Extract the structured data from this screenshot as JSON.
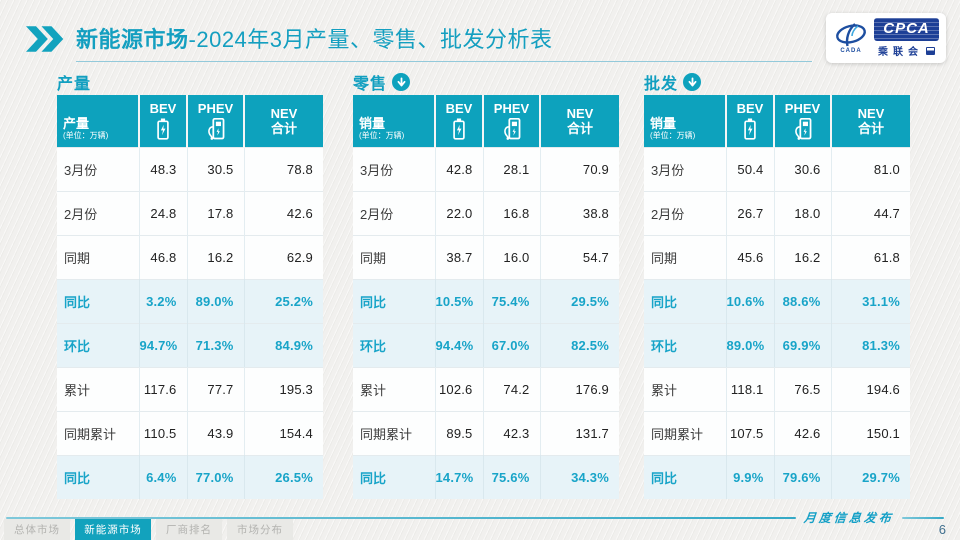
{
  "accent": "#0da2bd",
  "header": {
    "title_strong": "新能源市场",
    "title_rest": "-2024年3月产量、零售、批发分析表",
    "logo": {
      "emblem_text": "CADA",
      "cpca": "CPCA",
      "org": "乘联会"
    }
  },
  "watermark": "CPCA 乘联会",
  "tables": [
    {
      "section_title": "产量",
      "has_arrow": false,
      "corner": {
        "label": "产量",
        "unit": "(单位：万辆)"
      },
      "columns": [
        {
          "label": "BEV",
          "icon": "battery-icon"
        },
        {
          "label": "PHEV",
          "icon": "charger-icon"
        },
        {
          "label": "NEV",
          "label2": "合计"
        }
      ],
      "rows": [
        {
          "label": "3月份",
          "percent": false,
          "values": [
            "48.3",
            "30.5",
            "78.8"
          ]
        },
        {
          "label": "2月份",
          "percent": false,
          "values": [
            "24.8",
            "17.8",
            "42.6"
          ]
        },
        {
          "label": "同期",
          "percent": false,
          "values": [
            "46.8",
            "16.2",
            "62.9"
          ]
        },
        {
          "label": "同比",
          "percent": true,
          "values": [
            "3.2%",
            "89.0%",
            "25.2%"
          ]
        },
        {
          "label": "环比",
          "percent": true,
          "values": [
            "94.7%",
            "71.3%",
            "84.9%"
          ]
        },
        {
          "label": "累计",
          "percent": false,
          "values": [
            "117.6",
            "77.7",
            "195.3"
          ]
        },
        {
          "label": "同期累计",
          "percent": false,
          "values": [
            "110.5",
            "43.9",
            "154.4"
          ]
        },
        {
          "label": "同比",
          "percent": true,
          "values": [
            "6.4%",
            "77.0%",
            "26.5%"
          ]
        }
      ]
    },
    {
      "section_title": "零售",
      "has_arrow": true,
      "corner": {
        "label": "销量",
        "unit": "(单位：万辆)"
      },
      "columns": [
        {
          "label": "BEV",
          "icon": "battery-icon"
        },
        {
          "label": "PHEV",
          "icon": "charger-icon"
        },
        {
          "label": "NEV",
          "label2": "合计"
        }
      ],
      "rows": [
        {
          "label": "3月份",
          "percent": false,
          "values": [
            "42.8",
            "28.1",
            "70.9"
          ]
        },
        {
          "label": "2月份",
          "percent": false,
          "values": [
            "22.0",
            "16.8",
            "38.8"
          ]
        },
        {
          "label": "同期",
          "percent": false,
          "values": [
            "38.7",
            "16.0",
            "54.7"
          ]
        },
        {
          "label": "同比",
          "percent": true,
          "values": [
            "10.5%",
            "75.4%",
            "29.5%"
          ]
        },
        {
          "label": "环比",
          "percent": true,
          "values": [
            "94.4%",
            "67.0%",
            "82.5%"
          ]
        },
        {
          "label": "累计",
          "percent": false,
          "values": [
            "102.6",
            "74.2",
            "176.9"
          ]
        },
        {
          "label": "同期累计",
          "percent": false,
          "values": [
            "89.5",
            "42.3",
            "131.7"
          ]
        },
        {
          "label": "同比",
          "percent": true,
          "values": [
            "14.7%",
            "75.6%",
            "34.3%"
          ]
        }
      ]
    },
    {
      "section_title": "批发",
      "has_arrow": true,
      "corner": {
        "label": "销量",
        "unit": "(单位：万辆)"
      },
      "columns": [
        {
          "label": "BEV",
          "icon": "battery-icon"
        },
        {
          "label": "PHEV",
          "icon": "charger-icon"
        },
        {
          "label": "NEV",
          "label2": "合计"
        }
      ],
      "rows": [
        {
          "label": "3月份",
          "percent": false,
          "values": [
            "50.4",
            "30.6",
            "81.0"
          ]
        },
        {
          "label": "2月份",
          "percent": false,
          "values": [
            "26.7",
            "18.0",
            "44.7"
          ]
        },
        {
          "label": "同期",
          "percent": false,
          "values": [
            "45.6",
            "16.2",
            "61.8"
          ]
        },
        {
          "label": "同比",
          "percent": true,
          "values": [
            "10.6%",
            "88.6%",
            "31.1%"
          ]
        },
        {
          "label": "环比",
          "percent": true,
          "values": [
            "89.0%",
            "69.9%",
            "81.3%"
          ]
        },
        {
          "label": "累计",
          "percent": false,
          "values": [
            "118.1",
            "76.5",
            "194.6"
          ]
        },
        {
          "label": "同期累计",
          "percent": false,
          "values": [
            "107.5",
            "42.6",
            "150.1"
          ]
        },
        {
          "label": "同比",
          "percent": true,
          "values": [
            "9.9%",
            "79.6%",
            "29.7%"
          ]
        }
      ]
    }
  ],
  "footer": {
    "tabs": [
      {
        "label": "总体市场",
        "active": false
      },
      {
        "label": "新能源市场",
        "active": true
      },
      {
        "label": "厂商排名",
        "active": false
      },
      {
        "label": "市场分布",
        "active": false
      }
    ],
    "ribbon": "月度信息发布",
    "page": "6"
  }
}
